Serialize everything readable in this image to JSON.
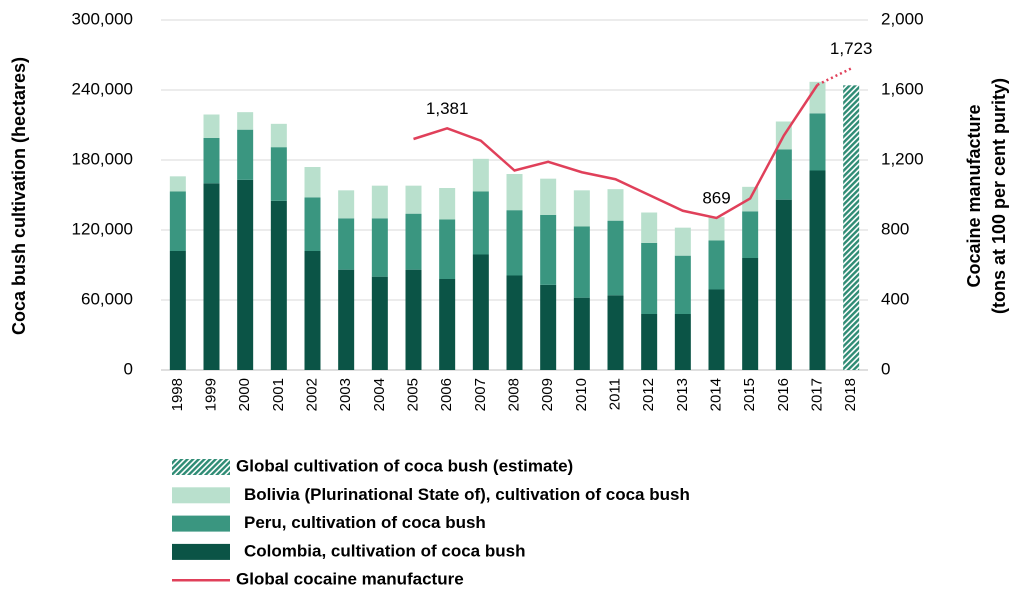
{
  "chart_data": {
    "type": "bar",
    "ylabel": "Coca bush cultivation (hectares)",
    "y2label": [
      "Cocaine manufacture",
      "(tons at 100 per cent purity)"
    ],
    "categories": [
      "1998",
      "1999",
      "2000",
      "2001",
      "2002",
      "2003",
      "2004",
      "2005",
      "2006",
      "2007",
      "2008",
      "2009",
      "2010",
      "2011",
      "2012",
      "2013",
      "2014",
      "2015",
      "2016",
      "2017",
      "2018"
    ],
    "ylim": [
      0,
      300000
    ],
    "yticks": [
      0,
      {
        "value": 60000,
        "label": "60,000"
      },
      {
        "value": 120000,
        "label": "120,000"
      },
      {
        "value": 180000,
        "label": "180,000"
      },
      {
        "value": 240000,
        "label": "240,000"
      },
      {
        "value": 300000,
        "label": "300,000"
      }
    ],
    "y2lim": [
      0,
      2000
    ],
    "y2ticks": [
      0,
      400,
      800,
      {
        "value": 1200,
        "label": "1,200"
      },
      {
        "value": 1600,
        "label": "1,600"
      },
      {
        "value": 2000,
        "label": "2,000"
      }
    ],
    "grid": true,
    "legend": "bottom",
    "series": [
      {
        "name": "Global cultivation of coca bush (estimate)",
        "type": "bar",
        "stacked": false,
        "pattern": "hatch",
        "color": "#2e8b74",
        "values": [
          null,
          null,
          null,
          null,
          null,
          null,
          null,
          null,
          null,
          null,
          null,
          null,
          null,
          null,
          null,
          null,
          null,
          null,
          null,
          null,
          244000
        ]
      },
      {
        "name": "Bolivia (Plurinational State of), cultivation of coca bush",
        "type": "bar",
        "stacked": true,
        "color": "#b9e0cd",
        "values": [
          13000,
          20000,
          15000,
          20000,
          26000,
          24000,
          28000,
          24000,
          27000,
          28000,
          31000,
          31000,
          31000,
          27000,
          26000,
          24000,
          20000,
          21000,
          24000,
          27000,
          null
        ]
      },
      {
        "name": "Peru, cultivation of coca bush",
        "type": "bar",
        "stacked": true,
        "color": "#3a9680",
        "values": [
          51000,
          39000,
          43000,
          46000,
          46000,
          44000,
          50000,
          48000,
          51000,
          54000,
          56000,
          60000,
          61000,
          64000,
          61000,
          50000,
          42000,
          40000,
          43000,
          49000,
          null
        ]
      },
      {
        "name": "Colombia, cultivation of coca bush",
        "type": "bar",
        "stacked": true,
        "color": "#0b5446",
        "values": [
          102000,
          160000,
          163000,
          145000,
          102000,
          86000,
          80000,
          86000,
          78000,
          99000,
          81000,
          73000,
          62000,
          64000,
          48000,
          48000,
          69000,
          96000,
          146000,
          171000,
          null
        ]
      },
      {
        "name": "Global cocaine manufacture",
        "type": "line",
        "axis": "y2",
        "color": "#e0405a",
        "dotted_last_segment": true,
        "values": [
          null,
          null,
          null,
          null,
          null,
          null,
          null,
          1320,
          1381,
          1310,
          1140,
          1190,
          1130,
          1090,
          1000,
          910,
          869,
          980,
          1340,
          1630,
          1723
        ],
        "value_labels": [
          null,
          null,
          null,
          null,
          null,
          null,
          null,
          null,
          "1,381",
          null,
          null,
          null,
          null,
          null,
          null,
          null,
          "869",
          null,
          null,
          null,
          "1,723"
        ]
      }
    ]
  }
}
